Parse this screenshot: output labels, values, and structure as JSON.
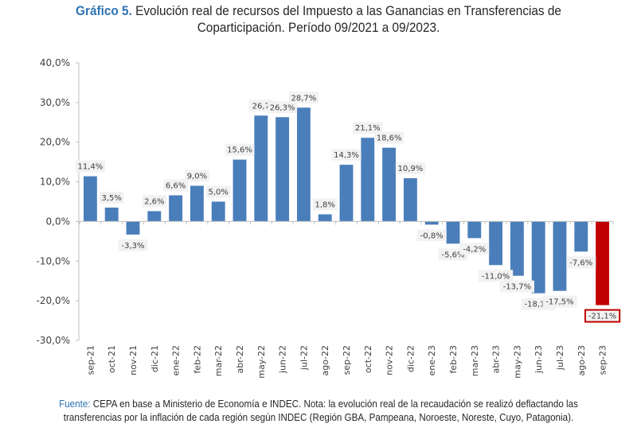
{
  "header": {
    "label": "Gráfico 5.",
    "title_line1": " Evolución real de recursos del Impuesto a las Ganancias en Transferencias de",
    "title_line2": "Coparticipación. Período 09/2021 a 09/2023."
  },
  "footer": {
    "label": "Fuente:",
    "text": " CEPA en base a Ministerio de Economía e INDEC. Nota: la evolución real de la recaudación se realizó deflactando las transferencias por la inflación de cada región según INDEC (Región GBA, Pampeana, Noroeste, Noreste, Cuyo, Patagonia)."
  },
  "colors": {
    "bar": "#4a7ebb",
    "highlight_bar": "#c00000",
    "label_bg": "#f2f2f2",
    "highlight_border": "#c00000",
    "axis": "#bfbfbf"
  },
  "chart_data": {
    "type": "bar",
    "title": "Gráfico 5. Evolución real de recursos del Impuesto a las Ganancias en Transferencias de Coparticipación. Período 09/2021 a 09/2023.",
    "xlabel": "",
    "ylabel": "",
    "ylim": [
      -30,
      40
    ],
    "yticks": [
      40,
      30,
      20,
      10,
      0,
      -10,
      -20,
      -30
    ],
    "ytick_labels": [
      "40,0%",
      "30,0%",
      "20,0%",
      "10,0%",
      "0,0%",
      "-10,0%",
      "-20,0%",
      "-30,0%"
    ],
    "grid": false,
    "legend": "none",
    "categories": [
      "sep-21",
      "oct-21",
      "nov-21",
      "dic-21",
      "ene-22",
      "feb-22",
      "mar-22",
      "abr-22",
      "may-22",
      "jun-22",
      "jul-22",
      "ago-22",
      "sep-22",
      "oct-22",
      "nov-22",
      "dic-22",
      "ene-23",
      "feb-23",
      "mar-23",
      "abr-23",
      "may-23",
      "jun-23",
      "jul-23",
      "ago-23",
      "sep-23"
    ],
    "values": [
      11.4,
      3.5,
      -3.3,
      2.6,
      6.6,
      9.0,
      5.0,
      15.6,
      26.7,
      26.3,
      28.7,
      1.8,
      14.3,
      21.1,
      18.6,
      10.9,
      -0.8,
      -5.6,
      -4.2,
      -11.0,
      -13.7,
      -18.1,
      -17.5,
      -7.6,
      -21.1
    ],
    "data_labels": [
      "11,4%",
      "3,5%",
      "-3,3%",
      "2,6%",
      "6,6%",
      "9,0%",
      "5,0%",
      "15,6%",
      "26,7",
      "26,3%",
      "28,7%",
      "1,8%",
      "14,3%",
      "21,1%",
      "18,6%",
      "10,9%",
      "-0,8%",
      "-5,6%",
      "-4,2%",
      "-11,0%",
      "-13,7%",
      "-18,1%",
      "-17,5%",
      "-7,6%",
      "-21,1%"
    ],
    "highlight_index": 24
  }
}
